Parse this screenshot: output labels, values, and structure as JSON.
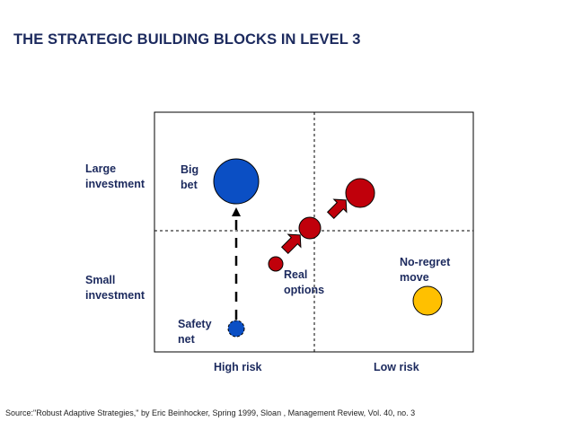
{
  "title": "THE STRATEGIC BUILDING BLOCKS IN LEVEL 3",
  "row_labels": {
    "large": [
      "Large",
      "investment"
    ],
    "small": [
      "Small",
      "investment"
    ]
  },
  "col_labels": {
    "high_risk": "High risk",
    "low_risk": "Low risk"
  },
  "blocks": {
    "big_bet": {
      "lines": [
        "Big",
        "bet"
      ],
      "color": "#0b4fc4"
    },
    "safety_net": {
      "lines": [
        "Safety",
        "net"
      ],
      "color": "#0b4fc4"
    },
    "real_options": {
      "lines": [
        "Real",
        "options"
      ],
      "color": "#c0000b"
    },
    "no_regret": {
      "lines": [
        "No-regret",
        "move"
      ],
      "color": "#ffc000"
    }
  },
  "source": "Source:\"Robust Adaptive Strategies,\" by Eric Beinhocker, Spring 1999, Sloan , Management Review, Vol. 40, no. 3"
}
